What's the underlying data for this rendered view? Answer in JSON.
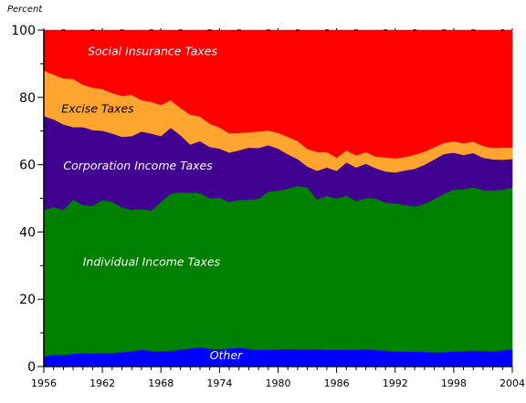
{
  "chart_data": {
    "type": "area",
    "stacked": true,
    "percent_stacked": true,
    "ylabel": "Percent",
    "ylim": [
      0,
      100
    ],
    "yticks": [
      0,
      20,
      40,
      60,
      80,
      100
    ],
    "xlim": [
      1956,
      2004
    ],
    "xticks": [
      "1956",
      "1962",
      "1968",
      "1974",
      "1980",
      "1986",
      "1992",
      "1998",
      "2004"
    ],
    "x": [
      1956,
      1957,
      1958,
      1959,
      1960,
      1961,
      1962,
      1963,
      1964,
      1965,
      1966,
      1967,
      1968,
      1969,
      1970,
      1971,
      1972,
      1973,
      1974,
      1975,
      1976,
      1977,
      1978,
      1979,
      1980,
      1981,
      1982,
      1983,
      1984,
      1985,
      1986,
      1987,
      1988,
      1989,
      1990,
      1991,
      1992,
      1993,
      1994,
      1995,
      1996,
      1997,
      1998,
      1999,
      2000,
      2001,
      2002,
      2003,
      2004
    ],
    "series": [
      {
        "name": "Other",
        "color": "#0000ff",
        "label_color": "#ffffff",
        "values": [
          3.0,
          3.5,
          3.5,
          3.8,
          4.0,
          3.9,
          4.0,
          4.1,
          4.3,
          4.6,
          5.0,
          4.7,
          4.6,
          4.7,
          5.0,
          5.4,
          5.8,
          5.3,
          5.2,
          5.4,
          5.6,
          5.3,
          5.0,
          5.0,
          5.1,
          5.3,
          5.2,
          5.2,
          5.2,
          5.0,
          5.0,
          5.0,
          5.0,
          5.2,
          4.9,
          4.8,
          4.5,
          4.5,
          4.4,
          4.4,
          4.2,
          4.3,
          4.5,
          4.6,
          4.8,
          4.7,
          4.6,
          4.8,
          5.2
        ]
      },
      {
        "name": "Individual Income Taxes",
        "color": "#008000",
        "label_color": "#ffffff",
        "values": [
          43.5,
          43.9,
          43.1,
          45.9,
          44.0,
          43.9,
          45.5,
          44.9,
          43.1,
          42.0,
          41.9,
          41.7,
          44.4,
          46.7,
          46.8,
          46.3,
          45.8,
          44.7,
          45.0,
          43.6,
          43.9,
          44.3,
          44.9,
          47.0,
          47.2,
          47.6,
          48.5,
          48.1,
          44.5,
          45.8,
          45.0,
          45.9,
          44.2,
          44.9,
          45.0,
          44.0,
          44.0,
          43.6,
          43.2,
          44.0,
          45.6,
          47.1,
          48.1,
          48.1,
          48.5,
          47.8,
          47.8,
          47.8,
          48.0
        ]
      },
      {
        "name": "Corporation Income Taxes",
        "color": "#400090",
        "label_color": "#ffffff",
        "values": [
          28.0,
          26.1,
          25.4,
          21.5,
          23.2,
          22.5,
          20.6,
          20.3,
          20.9,
          21.9,
          23.0,
          22.9,
          19.5,
          19.6,
          17.0,
          14.3,
          15.4,
          15.3,
          14.6,
          14.6,
          14.8,
          15.5,
          15.1,
          13.8,
          12.5,
          10.2,
          8.0,
          6.2,
          8.5,
          8.4,
          8.2,
          9.8,
          10.0,
          10.2,
          9.1,
          9.2,
          9.2,
          10.2,
          11.2,
          11.6,
          11.8,
          11.8,
          11.0,
          10.2,
          10.2,
          9.6,
          9.2,
          8.9,
          8.5
        ]
      },
      {
        "name": "Excise Taxes",
        "color": "#ffa530",
        "label_color": "#000000",
        "values": [
          13.5,
          13.3,
          13.7,
          14.3,
          12.6,
          12.6,
          12.4,
          12.0,
          12.2,
          12.3,
          9.3,
          9.4,
          9.3,
          8.2,
          8.1,
          8.9,
          7.4,
          6.9,
          6.3,
          5.8,
          5.1,
          4.6,
          4.9,
          4.4,
          4.7,
          5.2,
          5.4,
          5.2,
          5.6,
          4.6,
          3.9,
          3.6,
          3.6,
          3.5,
          3.4,
          4.2,
          4.2,
          4.0,
          4.2,
          3.9,
          3.6,
          3.3,
          3.4,
          3.5,
          3.4,
          3.5,
          3.4,
          3.6,
          3.4
        ]
      },
      {
        "name": "Social Insurance Taxes",
        "color": "#ff0000",
        "label_color": "#ffffff",
        "values": [
          12.0,
          13.2,
          14.3,
          14.5,
          16.2,
          17.1,
          17.5,
          18.7,
          19.5,
          19.2,
          20.8,
          21.3,
          22.2,
          20.8,
          23.1,
          25.1,
          25.6,
          27.8,
          28.9,
          30.6,
          30.6,
          30.3,
          30.1,
          29.8,
          30.5,
          31.7,
          32.9,
          35.3,
          36.2,
          36.2,
          37.9,
          35.7,
          37.2,
          36.2,
          37.6,
          37.8,
          38.1,
          37.7,
          37.0,
          36.1,
          34.8,
          33.5,
          33.0,
          33.6,
          33.1,
          34.4,
          35.0,
          34.9,
          34.9
        ]
      }
    ],
    "labels": [
      {
        "series": "Social Insurance Taxes",
        "text": "Social Insurance Taxes",
        "x": 1960.5,
        "y": 92.5
      },
      {
        "series": "Excise Taxes",
        "text": "Excise Taxes",
        "x": 1957.8,
        "y": 75.5
      },
      {
        "series": "Corporation Income Taxes",
        "text": "Corporation Income Taxes",
        "x": 1958.0,
        "y": 58.5
      },
      {
        "series": "Individual Income Taxes",
        "text": "Individual Income Taxes",
        "x": 1960.0,
        "y": 30.0
      },
      {
        "series": "Other",
        "text": "Other",
        "x": 1973.0,
        "y": 2.2
      }
    ]
  }
}
